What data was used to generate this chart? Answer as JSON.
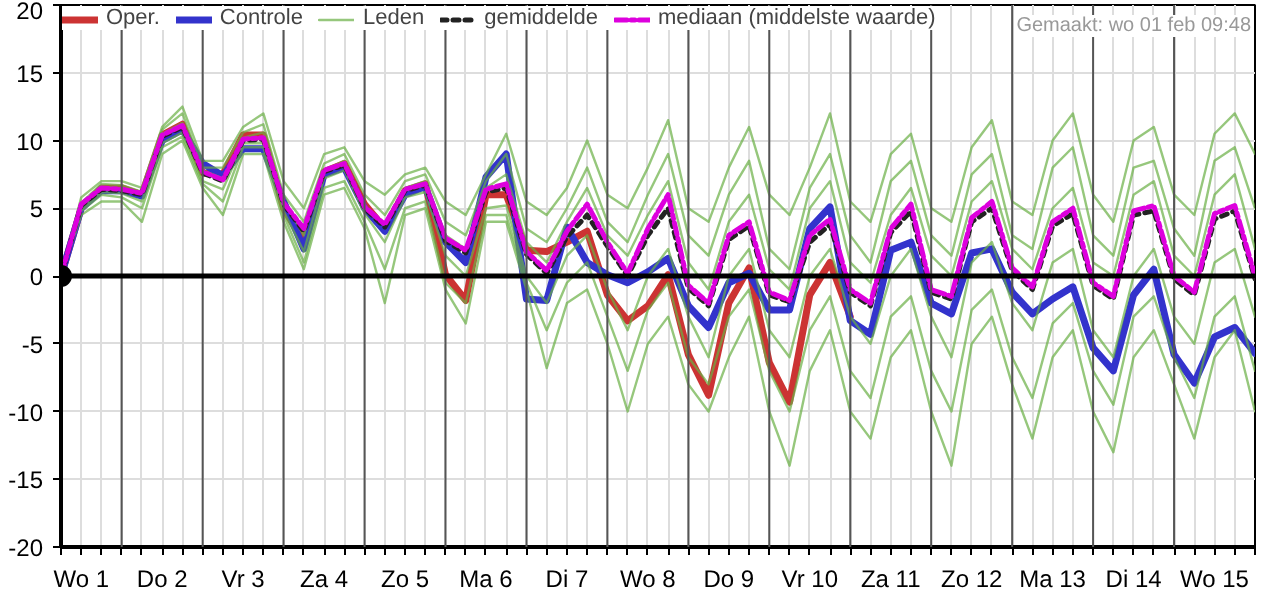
{
  "chart_data": {
    "type": "line",
    "annotations": [
      "Gemaakt: wo 01 feb 09:48"
    ],
    "categories": [
      null,
      "Wo 1",
      null,
      null,
      null,
      "Do 2",
      null,
      null,
      null,
      "Vr 3",
      null,
      null,
      null,
      "Za 4",
      null,
      null,
      null,
      "Zo 5",
      null,
      null,
      null,
      "Ma 6",
      null,
      null,
      null,
      "Di 7",
      null,
      null,
      null,
      "Wo 8",
      null,
      null,
      null,
      "Do 9",
      null,
      null,
      null,
      "Vr 10",
      null,
      null,
      null,
      "Za 11",
      null,
      null,
      null,
      "Zo 12",
      null,
      null,
      null,
      "Ma 13",
      null,
      null,
      null,
      "Di 14",
      null,
      null,
      null,
      "Wo 15",
      null,
      null
    ],
    "ylim": [
      -20,
      20
    ],
    "yticks": [
      -20,
      -15,
      -10,
      -5,
      0,
      5,
      10,
      15,
      20
    ],
    "grid": true,
    "legend": "top",
    "ref_lines": [
      {
        "axis": "y",
        "value": 0,
        "color": "#000000"
      }
    ],
    "series": [
      {
        "name": "Oper.",
        "color": "#cc3333",
        "line_style": "solid",
        "values": [
          0,
          5,
          6.5,
          6.5,
          6,
          10.4,
          11.2,
          7.6,
          7.5,
          10.4,
          10.4,
          5,
          2.5,
          7.7,
          8.3,
          5.3,
          3.5,
          6.3,
          6.8,
          0.1,
          -1.8,
          6,
          6,
          1.9,
          1.8,
          2.5,
          3.3,
          -1.4,
          -3.3,
          -2.2,
          0.1,
          -5.8,
          -8.8,
          -2,
          0.6,
          -6.4,
          -9.3,
          -1.4,
          1,
          -3,
          null,
          null,
          null,
          null,
          null,
          null,
          null,
          null,
          null,
          null,
          null,
          null,
          null,
          null,
          null,
          null,
          null,
          null,
          null,
          null
        ]
      },
      {
        "name": "Controle",
        "color": "#3333cc",
        "line_style": "solid",
        "values": [
          0,
          5,
          6.3,
          6.3,
          5.9,
          10,
          10.8,
          8.3,
          7.4,
          9.4,
          9.4,
          5.5,
          2,
          7.5,
          8,
          5,
          3.3,
          6,
          6.6,
          2.5,
          1,
          7.3,
          9,
          -1.7,
          -1.8,
          3.6,
          1,
          0.1,
          -0.5,
          0.3,
          1.3,
          -2.2,
          -3.8,
          -0.5,
          0.2,
          -2.5,
          -2.5,
          3.5,
          5.1,
          -3.3,
          -4.3,
          1.9,
          2.5,
          -2,
          -2.8,
          1.7,
          2,
          -1.2,
          -2.8,
          -1.7,
          -0.8,
          -5.3,
          -7,
          -1.4,
          0.5,
          -5.8,
          -7.9,
          -4.5,
          -3.8,
          -5.7
        ]
      },
      {
        "name": "Leden",
        "color": "#6aaf45",
        "line_style": "solid",
        "values": [
          0,
          5.8,
          7,
          7,
          6.5,
          11,
          12.5,
          8.5,
          8.5,
          11,
          12,
          7,
          5,
          9,
          9.5,
          7,
          6,
          7.5,
          8,
          5.5,
          4.5,
          7.5,
          10.5,
          5.5,
          4.5,
          6.5,
          10,
          6,
          5,
          8,
          11.5,
          5,
          4,
          8,
          11,
          6,
          4.5,
          8,
          12,
          5.5,
          4,
          9,
          10.5,
          5,
          4,
          9.5,
          11.5,
          5.5,
          4.5,
          10,
          12,
          6,
          4,
          10,
          11,
          6,
          4.5,
          10.5,
          12,
          9
        ]
      },
      {
        "color": "#6aaf45",
        "line_style": "solid",
        "values": [
          0,
          4.5,
          5.5,
          5.5,
          4,
          9,
          10,
          6.5,
          4.5,
          9,
          9,
          4,
          0.5,
          6,
          6.5,
          3.5,
          -2,
          4.5,
          5,
          -1,
          -3.5,
          4,
          4,
          -1,
          -6.8,
          -2,
          -1,
          -5,
          -10,
          -5,
          -3,
          -8,
          -10,
          -6,
          -3,
          -10,
          -14,
          -7,
          -4,
          -10,
          -12,
          -6,
          -4,
          -10,
          -14,
          -5,
          -3,
          -8,
          -12,
          -6,
          -4,
          -10,
          -13,
          -6,
          -4,
          -8,
          -12,
          -6,
          -4,
          -10
        ]
      },
      {
        "color": "#6aaf45",
        "line_style": "solid",
        "values": [
          0,
          5.3,
          6.6,
          6.5,
          6.1,
          10.5,
          11.3,
          7.8,
          7.2,
          10.2,
          10.6,
          5.5,
          3,
          7.8,
          8.5,
          5.2,
          3.8,
          6.5,
          7,
          3,
          2,
          6.5,
          7.5,
          2.5,
          1,
          4,
          6.5,
          3,
          1.5,
          4.5,
          7,
          1,
          -1,
          4,
          6,
          0.5,
          -1,
          5,
          7,
          1,
          -0.5,
          4.5,
          6.5,
          1.5,
          0,
          5.5,
          7,
          2,
          0.5,
          5,
          6.5,
          1,
          0,
          6,
          7,
          1.5,
          0,
          6,
          7.5,
          2
        ]
      },
      {
        "color": "#6aaf45",
        "line_style": "solid",
        "values": [
          0,
          5,
          6.2,
          6.1,
          5.5,
          9.8,
          10.6,
          7,
          6.4,
          9.8,
          9.8,
          4.8,
          1.8,
          7.2,
          7.8,
          4.6,
          2.5,
          5.8,
          6.2,
          1.5,
          0,
          5,
          5.2,
          0,
          -2,
          1.5,
          3,
          -1,
          -4,
          0,
          2,
          -3,
          -6,
          0,
          2,
          -4,
          -6,
          0,
          2,
          -3,
          -5,
          0,
          2,
          -3,
          -6,
          1,
          2.5,
          -2,
          -4,
          1,
          2,
          -4,
          -6,
          0,
          2,
          -3,
          -5,
          1,
          2,
          -3
        ]
      },
      {
        "color": "#6aaf45",
        "line_style": "solid",
        "values": [
          0,
          5.4,
          6.8,
          6.7,
          6.2,
          10.8,
          12,
          8,
          8,
          10.6,
          11.2,
          6,
          4,
          8.3,
          9,
          6,
          4.5,
          7,
          7.5,
          4,
          3,
          7,
          9,
          3.5,
          2.5,
          5,
          8,
          4,
          2.5,
          6,
          9,
          3,
          1.5,
          6,
          8.5,
          2,
          0.5,
          6.5,
          9,
          3,
          1,
          7,
          8.5,
          3,
          1.5,
          7.5,
          9,
          3,
          2,
          8,
          9.5,
          3,
          1.5,
          8,
          8.5,
          3.5,
          1.5,
          8.5,
          9.5,
          5
        ]
      },
      {
        "color": "#6aaf45",
        "line_style": "solid",
        "values": [
          0,
          4.8,
          6,
          5.8,
          5,
          9.5,
          10.3,
          6.8,
          5.5,
          9.5,
          9.5,
          4.5,
          1,
          6.5,
          7,
          4,
          0.5,
          5,
          5.5,
          -0.5,
          -2,
          4.5,
          4.5,
          -0.5,
          -4,
          -0.5,
          1,
          -3,
          -7,
          -2.5,
          -0.5,
          -6,
          -8,
          -3,
          -1,
          -7,
          -10,
          -4,
          -1.5,
          -7,
          -9,
          -3,
          -1.5,
          -7,
          -10,
          -2.5,
          -1,
          -6,
          -9,
          -3.5,
          -2,
          -7,
          -9.5,
          -3,
          -1.5,
          -6,
          -9,
          -3,
          -1.5,
          -7
        ]
      },
      {
        "name": "gemiddelde",
        "color": "#222222",
        "line_style": "dotted",
        "values": [
          0,
          5.2,
          6.4,
          6.3,
          6,
          10.3,
          11,
          7.6,
          7,
          10,
          10.1,
          5.3,
          3.3,
          7.7,
          8.2,
          5,
          3.6,
          6.3,
          6.7,
          2.6,
          1.7,
          6.2,
          6.5,
          1.6,
          0.2,
          2.9,
          4.5,
          2.2,
          0,
          3,
          5,
          -0.9,
          -2.2,
          2.7,
          3.7,
          -1.4,
          -1.9,
          2.5,
          3.8,
          -1.2,
          -2.2,
          3.2,
          4.8,
          -1.2,
          -1.7,
          4,
          5,
          0.4,
          -1,
          3.7,
          4.6,
          -0.7,
          -1.7,
          4.5,
          4.8,
          -0.2,
          -1.4,
          4.2,
          4.8,
          -0.2
        ]
      },
      {
        "name": "mediaan (middelste waarde)",
        "color": "#dd00dd",
        "line_style": "dashed",
        "values": [
          0,
          5.3,
          6.5,
          6.4,
          6.1,
          10.4,
          11.1,
          7.7,
          7.1,
          10.1,
          10.2,
          5.4,
          3.5,
          7.8,
          8.3,
          5.1,
          3.8,
          6.4,
          6.8,
          2.8,
          1.9,
          6.4,
          6.8,
          1.8,
          0.4,
          3.3,
          5.3,
          2.5,
          0.2,
          3.5,
          6,
          -0.7,
          -2,
          3,
          4,
          -1.2,
          -1.8,
          3,
          4.2,
          -1,
          -2,
          3.5,
          5.3,
          -1,
          -1.5,
          4.3,
          5.5,
          0.6,
          -0.8,
          4,
          5,
          -0.5,
          -1.5,
          4.8,
          5.2,
          0,
          -1.2,
          4.6,
          5.2,
          0
        ]
      },
      {
        "type": "scatter",
        "color": "#000000",
        "marker": "circle",
        "values": [
          0,
          null,
          null,
          null,
          null,
          null,
          null,
          null,
          null,
          null,
          null,
          null,
          null,
          null,
          null,
          null,
          null,
          null,
          null,
          null,
          null,
          null,
          null,
          null,
          null,
          null,
          null,
          null,
          null,
          null,
          null,
          null,
          null,
          null,
          null,
          null,
          null,
          null,
          null,
          null,
          null,
          null,
          null,
          null,
          null,
          null,
          null,
          null,
          null,
          null,
          null,
          null,
          null,
          null,
          null,
          null,
          null,
          null,
          null,
          null
        ]
      }
    ]
  }
}
